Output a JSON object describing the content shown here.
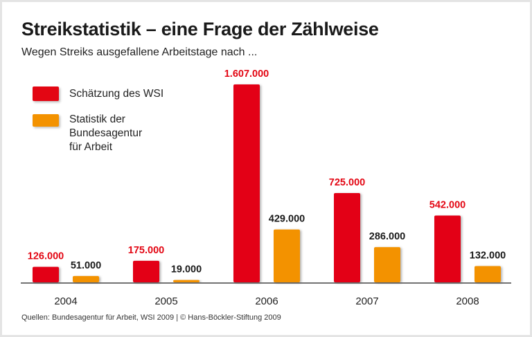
{
  "chart_data": {
    "type": "bar",
    "title": "Streikstatistik – eine Frage der Zählweise",
    "subtitle": "Wegen Streiks ausgefallene Arbeitstage nach ...",
    "categories": [
      "2004",
      "2005",
      "2006",
      "2007",
      "2008"
    ],
    "series": [
      {
        "name": "Schätzung des WSI",
        "color": "#e30613",
        "label_color": "#e30613",
        "values": [
          126000,
          175000,
          1607000,
          725000,
          542000
        ],
        "labels": [
          "126.000",
          "175.000",
          "1.607.000",
          "725.000",
          "542.000"
        ]
      },
      {
        "name": "Statistik der Bundesagentur für Arbeit",
        "name_lines": [
          "Statistik der",
          "Bundesagentur",
          "für Arbeit"
        ],
        "color": "#f39200",
        "label_color": "#1a1a1a",
        "values": [
          51000,
          19000,
          429000,
          286000,
          132000
        ],
        "labels": [
          "51.000",
          "19.000",
          "429.000",
          "286.000",
          "132.000"
        ]
      }
    ],
    "ylim": [
      0,
      1607000
    ],
    "grid": false,
    "legend_position": "top-left",
    "source": "Quellen: Bundesagentur für Arbeit, WSI 2009 | © Hans-Böckler-Stiftung 2009"
  }
}
